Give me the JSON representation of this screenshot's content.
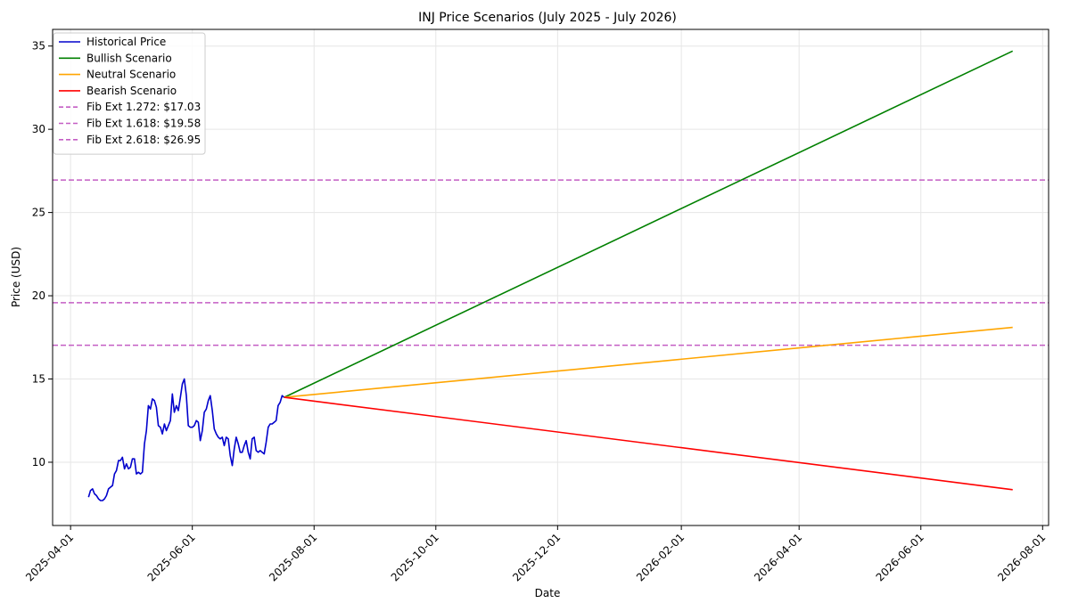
{
  "chart_data": {
    "type": "line",
    "title": "INJ Price Scenarios (July 2025 - July 2026)",
    "xlabel": "Date",
    "ylabel": "Price (USD)",
    "x_ticks": [
      "2025-04-01",
      "2025-06-01",
      "2025-08-01",
      "2025-10-01",
      "2025-12-01",
      "2026-02-01",
      "2026-04-01",
      "2026-06-01",
      "2026-08-01"
    ],
    "y_ticks": [
      10,
      15,
      20,
      25,
      30,
      35
    ],
    "xlim": [
      "2025-03-23",
      "2026-08-04"
    ],
    "ylim": [
      6.2,
      36.0
    ],
    "grid": true,
    "legend_position": "top-left",
    "series": [
      {
        "name": "Historical Price",
        "color": "#0000cc",
        "style": "solid",
        "points": [
          [
            "2025-04-10",
            7.9
          ],
          [
            "2025-04-11",
            8.3
          ],
          [
            "2025-04-12",
            8.4
          ],
          [
            "2025-04-13",
            8.1
          ],
          [
            "2025-04-14",
            8.0
          ],
          [
            "2025-04-15",
            7.8
          ],
          [
            "2025-04-16",
            7.7
          ],
          [
            "2025-04-17",
            7.7
          ],
          [
            "2025-04-18",
            7.8
          ],
          [
            "2025-04-19",
            8.0
          ],
          [
            "2025-04-20",
            8.4
          ],
          [
            "2025-04-21",
            8.5
          ],
          [
            "2025-04-22",
            8.6
          ],
          [
            "2025-04-23",
            9.3
          ],
          [
            "2025-04-24",
            9.5
          ],
          [
            "2025-04-25",
            10.1
          ],
          [
            "2025-04-26",
            10.1
          ],
          [
            "2025-04-27",
            10.3
          ],
          [
            "2025-04-28",
            9.6
          ],
          [
            "2025-04-29",
            9.9
          ],
          [
            "2025-04-30",
            9.6
          ],
          [
            "2025-05-01",
            9.7
          ],
          [
            "2025-05-02",
            10.2
          ],
          [
            "2025-05-03",
            10.2
          ],
          [
            "2025-05-04",
            9.3
          ],
          [
            "2025-05-05",
            9.4
          ],
          [
            "2025-05-06",
            9.3
          ],
          [
            "2025-05-07",
            9.4
          ],
          [
            "2025-05-08",
            11.1
          ],
          [
            "2025-05-09",
            11.9
          ],
          [
            "2025-05-10",
            13.4
          ],
          [
            "2025-05-11",
            13.2
          ],
          [
            "2025-05-12",
            13.8
          ],
          [
            "2025-05-13",
            13.7
          ],
          [
            "2025-05-14",
            13.3
          ],
          [
            "2025-05-15",
            12.2
          ],
          [
            "2025-05-16",
            12.1
          ],
          [
            "2025-05-17",
            11.7
          ],
          [
            "2025-05-18",
            12.3
          ],
          [
            "2025-05-19",
            11.9
          ],
          [
            "2025-05-20",
            12.2
          ],
          [
            "2025-05-21",
            12.5
          ],
          [
            "2025-05-22",
            14.1
          ],
          [
            "2025-05-23",
            13.0
          ],
          [
            "2025-05-24",
            13.4
          ],
          [
            "2025-05-25",
            13.1
          ],
          [
            "2025-05-26",
            13.9
          ],
          [
            "2025-05-27",
            14.7
          ],
          [
            "2025-05-28",
            15.0
          ],
          [
            "2025-05-29",
            14.0
          ],
          [
            "2025-05-30",
            12.2
          ],
          [
            "2025-05-31",
            12.1
          ],
          [
            "2025-06-01",
            12.1
          ],
          [
            "2025-06-02",
            12.2
          ],
          [
            "2025-06-03",
            12.5
          ],
          [
            "2025-06-04",
            12.4
          ],
          [
            "2025-06-05",
            11.3
          ],
          [
            "2025-06-06",
            11.9
          ],
          [
            "2025-06-07",
            13.0
          ],
          [
            "2025-06-08",
            13.2
          ],
          [
            "2025-06-09",
            13.7
          ],
          [
            "2025-06-10",
            14.0
          ],
          [
            "2025-06-11",
            13.1
          ],
          [
            "2025-06-12",
            12.0
          ],
          [
            "2025-06-13",
            11.7
          ],
          [
            "2025-06-14",
            11.5
          ],
          [
            "2025-06-15",
            11.4
          ],
          [
            "2025-06-16",
            11.5
          ],
          [
            "2025-06-17",
            11.0
          ],
          [
            "2025-06-18",
            11.5
          ],
          [
            "2025-06-19",
            11.4
          ],
          [
            "2025-06-20",
            10.4
          ],
          [
            "2025-06-21",
            9.8
          ],
          [
            "2025-06-22",
            10.8
          ],
          [
            "2025-06-23",
            11.5
          ],
          [
            "2025-06-24",
            11.1
          ],
          [
            "2025-06-25",
            10.6
          ],
          [
            "2025-06-26",
            10.6
          ],
          [
            "2025-06-27",
            11.0
          ],
          [
            "2025-06-28",
            11.3
          ],
          [
            "2025-06-29",
            10.6
          ],
          [
            "2025-06-30",
            10.2
          ],
          [
            "2025-07-01",
            11.4
          ],
          [
            "2025-07-02",
            11.5
          ],
          [
            "2025-07-03",
            10.7
          ],
          [
            "2025-07-04",
            10.6
          ],
          [
            "2025-07-05",
            10.7
          ],
          [
            "2025-07-06",
            10.6
          ],
          [
            "2025-07-07",
            10.5
          ],
          [
            "2025-07-08",
            11.2
          ],
          [
            "2025-07-09",
            12.1
          ],
          [
            "2025-07-10",
            12.3
          ],
          [
            "2025-07-11",
            12.3
          ],
          [
            "2025-07-12",
            12.4
          ],
          [
            "2025-07-13",
            12.5
          ],
          [
            "2025-07-14",
            13.4
          ],
          [
            "2025-07-15",
            13.6
          ],
          [
            "2025-07-16",
            14.0
          ],
          [
            "2025-07-17",
            13.9
          ]
        ]
      },
      {
        "name": "Bullish Scenario",
        "color": "#008000",
        "style": "solid",
        "points": [
          [
            "2025-07-17",
            13.9
          ],
          [
            "2026-07-17",
            34.7
          ]
        ]
      },
      {
        "name": "Neutral Scenario",
        "color": "#ffa500",
        "style": "solid",
        "points": [
          [
            "2025-07-17",
            13.9
          ],
          [
            "2026-07-17",
            18.1
          ]
        ]
      },
      {
        "name": "Bearish Scenario",
        "color": "#ff0000",
        "style": "solid",
        "points": [
          [
            "2025-07-17",
            13.9
          ],
          [
            "2026-07-17",
            8.35
          ]
        ]
      },
      {
        "name": "Fib Ext 1.272: $17.03",
        "color": "#c45ec4",
        "style": "dashed",
        "hline": 17.03
      },
      {
        "name": "Fib Ext 1.618: $19.58",
        "color": "#c45ec4",
        "style": "dashed",
        "hline": 19.58
      },
      {
        "name": "Fib Ext 2.618: $26.95",
        "color": "#c45ec4",
        "style": "dashed",
        "hline": 26.95
      }
    ]
  }
}
